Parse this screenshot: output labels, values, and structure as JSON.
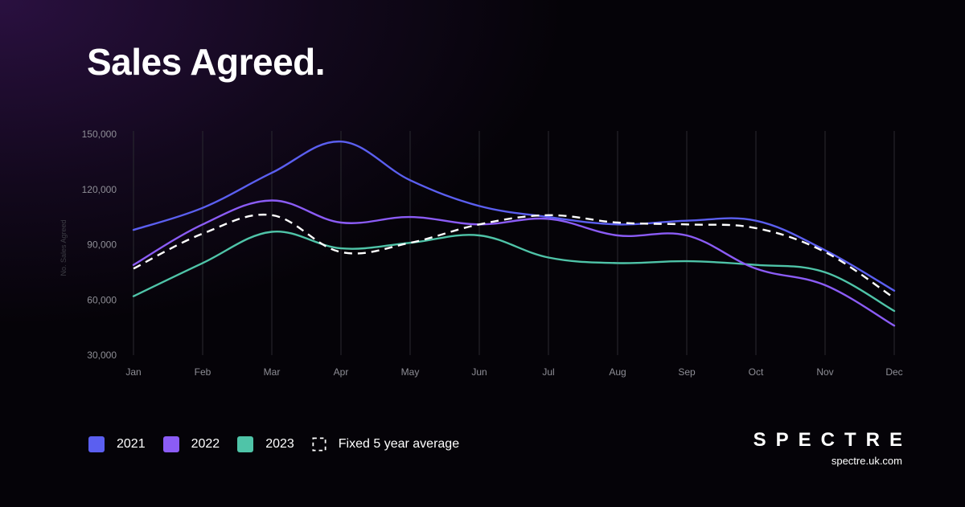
{
  "title": "Sales Agreed.",
  "brand": {
    "logo_text": "SPECTRE",
    "url": "spectre.uk.com"
  },
  "colors": {
    "series_2021": "#5b5ff0",
    "series_2022": "#8b5cf6",
    "series_2023": "#4fc4a8",
    "average": "#ffffff"
  },
  "legend": [
    {
      "label": "2021",
      "color": "#5b5ff0",
      "style": "solid"
    },
    {
      "label": "2022",
      "color": "#8b5cf6",
      "style": "solid"
    },
    {
      "label": "2023",
      "color": "#4fc4a8",
      "style": "solid"
    },
    {
      "label": "Fixed 5 year average",
      "color": "#ffffff",
      "style": "dashed"
    }
  ],
  "chart_data": {
    "type": "line",
    "categories": [
      "Jan",
      "Feb",
      "Mar",
      "Apr",
      "May",
      "Jun",
      "Jul",
      "Aug",
      "Sep",
      "Oct",
      "Nov",
      "Dec"
    ],
    "ylabel": "No. Sales Agreed",
    "ylim": [
      30000,
      150000
    ],
    "yticks": [
      30000,
      60000,
      90000,
      120000,
      150000
    ],
    "ytick_labels": [
      "30,000",
      "60,000",
      "90,000",
      "120,000",
      "150,000"
    ],
    "grid": "vertical",
    "legend_position": "bottom-left",
    "series": [
      {
        "name": "2021",
        "color": "#5b5ff0",
        "dashed": false,
        "values": [
          98000,
          110000,
          129000,
          146000,
          125000,
          111000,
          105000,
          101000,
          103000,
          103000,
          87000,
          65000
        ]
      },
      {
        "name": "2022",
        "color": "#8b5cf6",
        "dashed": false,
        "values": [
          79000,
          101000,
          114000,
          102000,
          105000,
          101000,
          104000,
          95000,
          95000,
          77000,
          68000,
          46000
        ]
      },
      {
        "name": "2023",
        "color": "#4fc4a8",
        "dashed": false,
        "values": [
          62000,
          80000,
          97000,
          88000,
          91000,
          95000,
          83000,
          80000,
          81000,
          79000,
          75000,
          54000
        ]
      },
      {
        "name": "Fixed 5 year average",
        "color": "#ffffff",
        "dashed": true,
        "values": [
          77000,
          96000,
          106000,
          86000,
          91000,
          101000,
          106000,
          102000,
          101000,
          99000,
          86000,
          61000
        ]
      }
    ]
  }
}
